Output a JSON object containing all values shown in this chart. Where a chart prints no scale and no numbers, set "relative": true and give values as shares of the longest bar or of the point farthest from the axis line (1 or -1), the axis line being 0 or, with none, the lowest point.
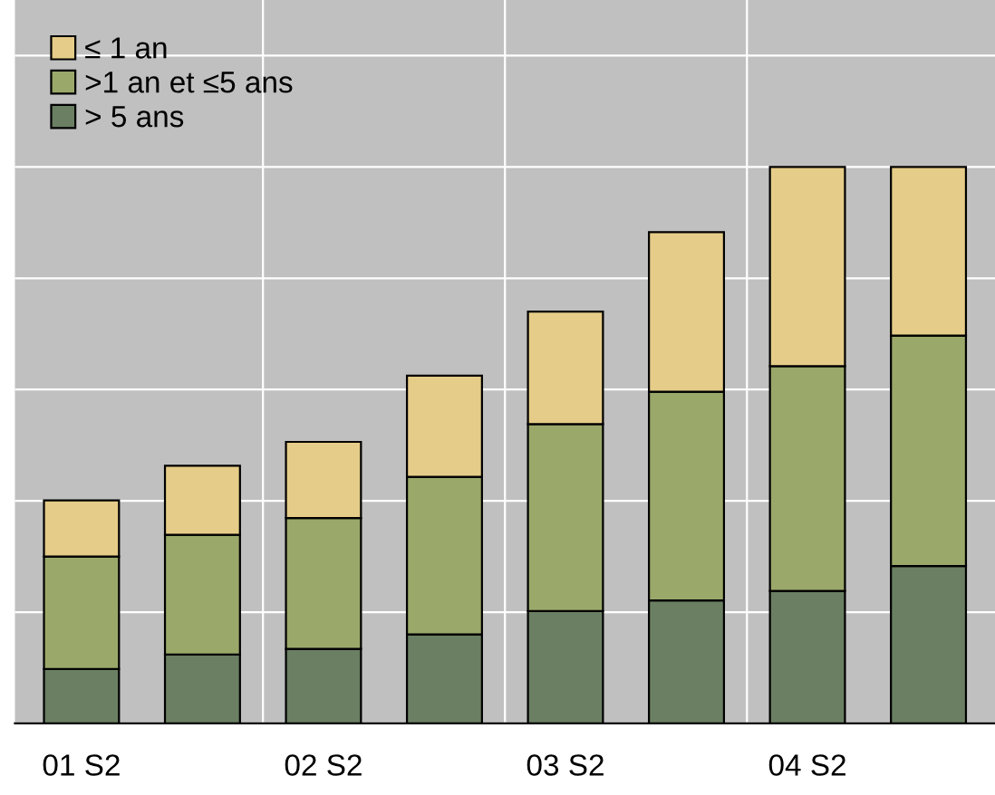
{
  "chart_data": {
    "type": "bar",
    "stacked": true,
    "relative": true,
    "categories": [
      "01 S2",
      null,
      "02 S2",
      null,
      "03 S2",
      null,
      "04 S2",
      null
    ],
    "series": [
      {
        "name": "> 5 ans",
        "color": "#6b7f63",
        "values": [
          0.098,
          0.124,
          0.134,
          0.16,
          0.202,
          0.221,
          0.238,
          0.283
        ]
      },
      {
        "name": ">1 an et ≤5 ans",
        "color": "#9aa86a",
        "values": [
          0.202,
          0.215,
          0.235,
          0.283,
          0.336,
          0.375,
          0.404,
          0.414
        ]
      },
      {
        "name": "≤ 1 an",
        "color": "#e5cc88",
        "values": [
          0.101,
          0.124,
          0.137,
          0.182,
          0.202,
          0.287,
          0.358,
          0.303
        ]
      }
    ],
    "grid": true,
    "legend": "top left"
  }
}
